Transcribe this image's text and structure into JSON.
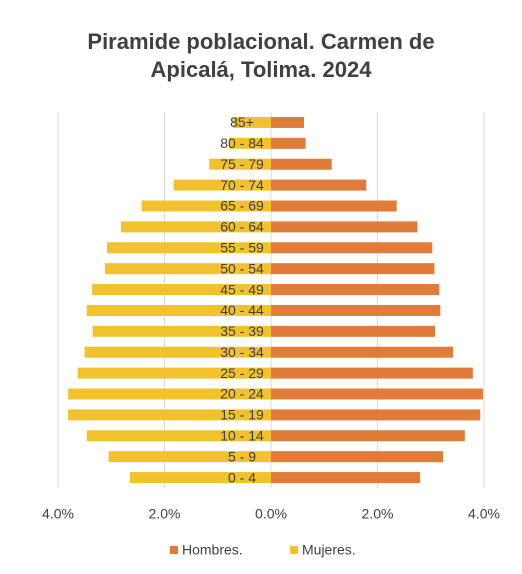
{
  "chart_data": {
    "type": "pyramid",
    "title": "Piramide poblacional. Carmen de Apicalá, Tolima. 2024",
    "categories": [
      "0 - 4",
      "5 - 9",
      "10 - 14",
      "15 - 19",
      "20 - 24",
      "25 - 29",
      "30 - 34",
      "35 - 39",
      "40 - 44",
      "45 - 49",
      "50 - 54",
      "55 - 59",
      "60 - 64",
      "65 - 69",
      "70 - 74",
      "75 - 79",
      "80 - 84",
      "85+"
    ],
    "series": [
      {
        "name": "Hombres.",
        "color": "#e07b39",
        "side": "right",
        "values": [
          2.8,
          3.23,
          3.64,
          3.93,
          3.98,
          3.79,
          3.42,
          3.08,
          3.18,
          3.16,
          3.07,
          3.03,
          2.75,
          2.36,
          1.79,
          1.14,
          0.65,
          0.62
        ]
      },
      {
        "name": "Mujeres.",
        "color": "#f2c12e",
        "side": "left",
        "values": [
          2.65,
          3.05,
          3.46,
          3.81,
          3.81,
          3.63,
          3.5,
          3.35,
          3.46,
          3.36,
          3.12,
          3.08,
          2.82,
          2.43,
          1.83,
          1.16,
          0.79,
          0.71
        ]
      }
    ],
    "xlim": [
      -4,
      4
    ],
    "xticks": [
      {
        "value": -4,
        "label": "4.0%"
      },
      {
        "value": -2,
        "label": "2.0%"
      },
      {
        "value": 0,
        "label": "0.0%"
      },
      {
        "value": 2,
        "label": "2.0%"
      },
      {
        "value": 4,
        "label": "4.0%"
      }
    ],
    "grid": true,
    "legend": "bottom"
  }
}
